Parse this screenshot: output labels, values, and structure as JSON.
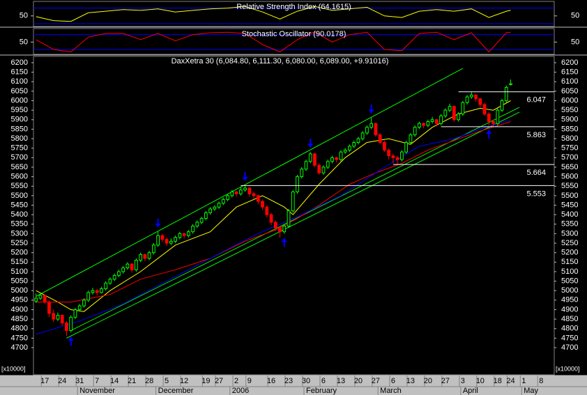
{
  "chart_data": [
    {
      "type": "line",
      "title": "Relative Strength Index (64.1615)",
      "color": "#ffff00",
      "level_color": "#0000ff",
      "xlim": [
        -0.6,
        119
      ],
      "ylim": [
        23,
        87
      ],
      "yticks": [
        50
      ],
      "levels": [
        70,
        30
      ],
      "x": [
        0,
        4,
        8,
        12,
        16,
        20,
        24,
        28,
        32,
        36,
        40,
        44,
        48,
        52,
        56,
        60,
        64,
        68,
        72,
        76,
        80,
        84,
        88,
        92,
        96,
        100,
        104,
        108,
        109
      ],
      "values": [
        48,
        38,
        36,
        58,
        62,
        66,
        64,
        68,
        60,
        64,
        68,
        70,
        74,
        60,
        42,
        62,
        74,
        64,
        68,
        72,
        50,
        46,
        62,
        66,
        62,
        68,
        46,
        62,
        64.1615
      ]
    },
    {
      "type": "line",
      "title": "Stochastic Oscillator (90.0178)",
      "color": "#ff0000",
      "level_color": "#0000ff",
      "xlim": [
        -0.6,
        119
      ],
      "ylim": [
        0,
        105
      ],
      "yticks": [
        50
      ],
      "levels": [
        80,
        20
      ],
      "x": [
        0,
        4,
        8,
        12,
        16,
        20,
        24,
        28,
        32,
        36,
        40,
        44,
        48,
        52,
        56,
        60,
        64,
        68,
        72,
        76,
        80,
        84,
        88,
        92,
        96,
        100,
        104,
        108,
        109
      ],
      "values": [
        60,
        20,
        10,
        70,
        85,
        85,
        60,
        85,
        55,
        80,
        88,
        90,
        85,
        40,
        10,
        60,
        92,
        50,
        80,
        90,
        20,
        15,
        85,
        90,
        60,
        88,
        10,
        88,
        90.0178
      ]
    },
    {
      "type": "candlestick",
      "title": "DaxXetra 30 (6,084.80, 6,111.30, 6,080.00, 6,089.00, +9.91016)",
      "up_color": "#00ff00",
      "down_color": "#ff0000",
      "scale_note": "[x10000]",
      "xlim": [
        -0.6,
        119
      ],
      "ylim": [
        4557,
        6233
      ],
      "yticks": [
        4700,
        4750,
        4800,
        4850,
        4900,
        4950,
        5000,
        5050,
        5100,
        5150,
        5200,
        5250,
        5300,
        5350,
        5400,
        5450,
        5500,
        5550,
        5600,
        5650,
        5700,
        5750,
        5800,
        5850,
        5900,
        5950,
        6000,
        6050,
        6100,
        6150,
        6200
      ],
      "ohlc": [
        [
          4945,
          4985,
          4935,
          4960
        ],
        [
          4960,
          4990,
          4950,
          4975
        ],
        [
          4975,
          4980,
          4930,
          4940
        ],
        [
          4940,
          4950,
          4860,
          4880
        ],
        [
          4880,
          4900,
          4835,
          4850
        ],
        [
          4850,
          4885,
          4840,
          4870
        ],
        [
          4870,
          4875,
          4815,
          4830
        ],
        [
          4830,
          4840,
          4760,
          4790
        ],
        [
          4790,
          4870,
          4780,
          4860
        ],
        [
          4860,
          4910,
          4850,
          4900
        ],
        [
          4900,
          4930,
          4890,
          4920
        ],
        [
          4920,
          4960,
          4910,
          4950
        ],
        [
          4950,
          5000,
          4940,
          4990
        ],
        [
          4990,
          5015,
          4980,
          5000
        ],
        [
          5000,
          5010,
          4975,
          4990
        ],
        [
          4990,
          5020,
          4985,
          5010
        ],
        [
          5010,
          5050,
          5000,
          5040
        ],
        [
          5040,
          5070,
          5030,
          5060
        ],
        [
          5060,
          5090,
          5050,
          5080
        ],
        [
          5080,
          5110,
          5070,
          5100
        ],
        [
          5100,
          5130,
          5090,
          5120
        ],
        [
          5120,
          5150,
          5110,
          5140
        ],
        [
          5140,
          5145,
          5095,
          5110
        ],
        [
          5110,
          5170,
          5100,
          5160
        ],
        [
          5160,
          5200,
          5150,
          5190
        ],
        [
          5190,
          5195,
          5155,
          5170
        ],
        [
          5170,
          5210,
          5160,
          5200
        ],
        [
          5200,
          5250,
          5190,
          5240
        ],
        [
          5240,
          5310,
          5230,
          5290
        ],
        [
          5290,
          5300,
          5255,
          5270
        ],
        [
          5270,
          5280,
          5235,
          5250
        ],
        [
          5250,
          5275,
          5240,
          5260
        ],
        [
          5260,
          5290,
          5250,
          5280
        ],
        [
          5280,
          5310,
          5270,
          5300
        ],
        [
          5300,
          5305,
          5275,
          5290
        ],
        [
          5290,
          5320,
          5280,
          5310
        ],
        [
          5310,
          5350,
          5300,
          5340
        ],
        [
          5340,
          5370,
          5330,
          5360
        ],
        [
          5360,
          5390,
          5350,
          5380
        ],
        [
          5380,
          5420,
          5370,
          5410
        ],
        [
          5410,
          5440,
          5400,
          5430
        ],
        [
          5430,
          5450,
          5420,
          5440
        ],
        [
          5440,
          5470,
          5430,
          5460
        ],
        [
          5460,
          5490,
          5450,
          5480
        ],
        [
          5480,
          5510,
          5470,
          5500
        ],
        [
          5500,
          5530,
          5490,
          5520
        ],
        [
          5520,
          5525,
          5495,
          5510
        ],
        [
          5510,
          5545,
          5500,
          5530
        ],
        [
          5530,
          5555,
          5520,
          5540
        ],
        [
          5540,
          5545,
          5495,
          5510
        ],
        [
          5510,
          5520,
          5485,
          5500
        ],
        [
          5500,
          5505,
          5455,
          5470
        ],
        [
          5470,
          5480,
          5425,
          5440
        ],
        [
          5440,
          5450,
          5385,
          5400
        ],
        [
          5400,
          5410,
          5345,
          5360
        ],
        [
          5360,
          5370,
          5315,
          5330
        ],
        [
          5330,
          5340,
          5280,
          5310
        ],
        [
          5310,
          5350,
          5300,
          5340
        ],
        [
          5340,
          5430,
          5330,
          5420
        ],
        [
          5420,
          5530,
          5410,
          5520
        ],
        [
          5520,
          5610,
          5510,
          5600
        ],
        [
          5600,
          5650,
          5590,
          5640
        ],
        [
          5640,
          5690,
          5630,
          5680
        ],
        [
          5680,
          5730,
          5670,
          5720
        ],
        [
          5720,
          5725,
          5650,
          5660
        ],
        [
          5660,
          5670,
          5610,
          5620
        ],
        [
          5620,
          5660,
          5610,
          5650
        ],
        [
          5650,
          5690,
          5640,
          5680
        ],
        [
          5680,
          5710,
          5670,
          5700
        ],
        [
          5700,
          5705,
          5675,
          5690
        ],
        [
          5690,
          5740,
          5680,
          5730
        ],
        [
          5730,
          5750,
          5720,
          5740
        ],
        [
          5740,
          5770,
          5730,
          5760
        ],
        [
          5760,
          5790,
          5750,
          5780
        ],
        [
          5780,
          5810,
          5770,
          5800
        ],
        [
          5800,
          5840,
          5790,
          5830
        ],
        [
          5830,
          5870,
          5820,
          5860
        ],
        [
          5860,
          5910,
          5850,
          5880
        ],
        [
          5880,
          5885,
          5810,
          5820
        ],
        [
          5820,
          5830,
          5770,
          5780
        ],
        [
          5780,
          5790,
          5730,
          5740
        ],
        [
          5740,
          5750,
          5690,
          5710
        ],
        [
          5710,
          5720,
          5670,
          5700
        ],
        [
          5700,
          5710,
          5665,
          5690
        ],
        [
          5690,
          5740,
          5680,
          5730
        ],
        [
          5730,
          5790,
          5720,
          5780
        ],
        [
          5780,
          5830,
          5770,
          5820
        ],
        [
          5820,
          5870,
          5810,
          5860
        ],
        [
          5860,
          5890,
          5850,
          5880
        ],
        [
          5880,
          5885,
          5855,
          5870
        ],
        [
          5870,
          5900,
          5860,
          5890
        ],
        [
          5890,
          5915,
          5880,
          5900
        ],
        [
          5900,
          5905,
          5865,
          5880
        ],
        [
          5880,
          5930,
          5870,
          5920
        ],
        [
          5920,
          5960,
          5910,
          5950
        ],
        [
          5950,
          5985,
          5940,
          5970
        ],
        [
          5970,
          5975,
          5890,
          5900
        ],
        [
          5900,
          5940,
          5890,
          5930
        ],
        [
          5930,
          6000,
          5920,
          5990
        ],
        [
          5990,
          6030,
          5980,
          6020
        ],
        [
          6020,
          6045,
          6010,
          6030
        ],
        [
          6030,
          6035,
          5995,
          6010
        ],
        [
          6010,
          6015,
          5965,
          5980
        ],
        [
          5980,
          5990,
          5920,
          5930
        ],
        [
          5930,
          5940,
          5870,
          5890
        ],
        [
          5890,
          5900,
          5860,
          5880
        ],
        [
          5880,
          5960,
          5870,
          5950
        ],
        [
          5950,
          6010,
          5940,
          6000
        ],
        [
          6000,
          6080,
          5990,
          6070
        ],
        [
          6084.8,
          6111.3,
          6080,
          6089
        ]
      ],
      "overlays": [
        {
          "color": "#ffff00",
          "x": [
            0,
            5,
            8,
            11,
            17,
            24,
            32,
            40,
            46,
            52,
            57,
            59,
            65,
            71,
            76,
            81,
            86,
            91,
            97,
            102,
            105,
            109
          ],
          "values": [
            5000,
            4940,
            4900,
            4890,
            5000,
            5100,
            5240,
            5310,
            5440,
            5500,
            5440,
            5400,
            5560,
            5700,
            5780,
            5800,
            5770,
            5860,
            5930,
            5960,
            5950,
            6000
          ]
        },
        {
          "color": "#ff0000",
          "x": [
            0,
            8,
            17,
            24,
            32,
            40,
            48,
            55,
            60,
            65,
            72,
            78,
            84,
            90,
            96,
            102,
            109
          ],
          "values": [
            4940,
            4940,
            4980,
            5060,
            5110,
            5170,
            5260,
            5320,
            5380,
            5450,
            5560,
            5620,
            5670,
            5740,
            5790,
            5840,
            5890
          ]
        },
        {
          "color": "#0000ff",
          "x": [
            0,
            10,
            20,
            30,
            40,
            50,
            60,
            70,
            80,
            88,
            96,
            102,
            109
          ],
          "values": [
            4770,
            4840,
            4930,
            5050,
            5170,
            5290,
            5390,
            5500,
            5650,
            5760,
            5800,
            5850,
            5900
          ]
        }
      ],
      "trendlines": [
        {
          "color": "#00ff00",
          "x": [
            0,
            98
          ],
          "values": [
            4970,
            6170
          ]
        },
        {
          "color": "#00ff00",
          "x": [
            7,
            111
          ],
          "values": [
            4750,
            5940
          ]
        },
        {
          "color": "#00ff00",
          "x": [
            8,
            111
          ],
          "values": [
            4790,
            5965
          ]
        }
      ],
      "levels": [
        {
          "value": 6047,
          "label": "6.047",
          "from": 97
        },
        {
          "value": 5863,
          "label": "5.863",
          "from": 93
        },
        {
          "value": 5664,
          "label": "5.664",
          "from": 82
        },
        {
          "value": 5553,
          "label": "5.553",
          "from": 47
        }
      ],
      "signals": [
        {
          "x": 8,
          "direction": "up"
        },
        {
          "x": 28,
          "direction": "down"
        },
        {
          "x": 48,
          "direction": "down"
        },
        {
          "x": 57,
          "direction": "up"
        },
        {
          "x": 63,
          "direction": "down"
        },
        {
          "x": 77,
          "direction": "down"
        },
        {
          "x": 104,
          "direction": "up"
        }
      ],
      "signal_color": "#0000ff",
      "xticks": [
        {
          "value": 2,
          "label": "17"
        },
        {
          "value": 6,
          "label": "24"
        },
        {
          "value": 10,
          "label": "31"
        },
        {
          "value": 14,
          "label": "7"
        },
        {
          "value": 18,
          "label": "14"
        },
        {
          "value": 22,
          "label": "21"
        },
        {
          "value": 26,
          "label": "28"
        },
        {
          "value": 30,
          "label": "5"
        },
        {
          "value": 34,
          "label": "12"
        },
        {
          "value": 39,
          "label": "19"
        },
        {
          "value": 42,
          "label": "27"
        },
        {
          "value": 46,
          "label": "2"
        },
        {
          "value": 49,
          "label": "9"
        },
        {
          "value": 54,
          "label": "16"
        },
        {
          "value": 58,
          "label": "23"
        },
        {
          "value": 62,
          "label": "30"
        },
        {
          "value": 66,
          "label": "6"
        },
        {
          "value": 70,
          "label": "13"
        },
        {
          "value": 74,
          "label": "20"
        },
        {
          "value": 78,
          "label": "27"
        },
        {
          "value": 82,
          "label": "6"
        },
        {
          "value": 86,
          "label": "13"
        },
        {
          "value": 90,
          "label": "20"
        },
        {
          "value": 94,
          "label": "27"
        },
        {
          "value": 98,
          "label": "3"
        },
        {
          "value": 102,
          "label": "10"
        },
        {
          "value": 106,
          "label": "18"
        },
        {
          "value": 109,
          "label": "24"
        },
        {
          "value": 112,
          "label": "1"
        },
        {
          "value": 116,
          "label": "8"
        }
      ],
      "months": [
        {
          "value": 10,
          "label": "November"
        },
        {
          "value": 28,
          "label": "December"
        },
        {
          "value": 45,
          "label": "2006"
        },
        {
          "value": 62,
          "label": "February"
        },
        {
          "value": 79,
          "label": "March"
        },
        {
          "value": 98,
          "label": "April"
        },
        {
          "value": 112,
          "label": "May"
        }
      ]
    }
  ]
}
